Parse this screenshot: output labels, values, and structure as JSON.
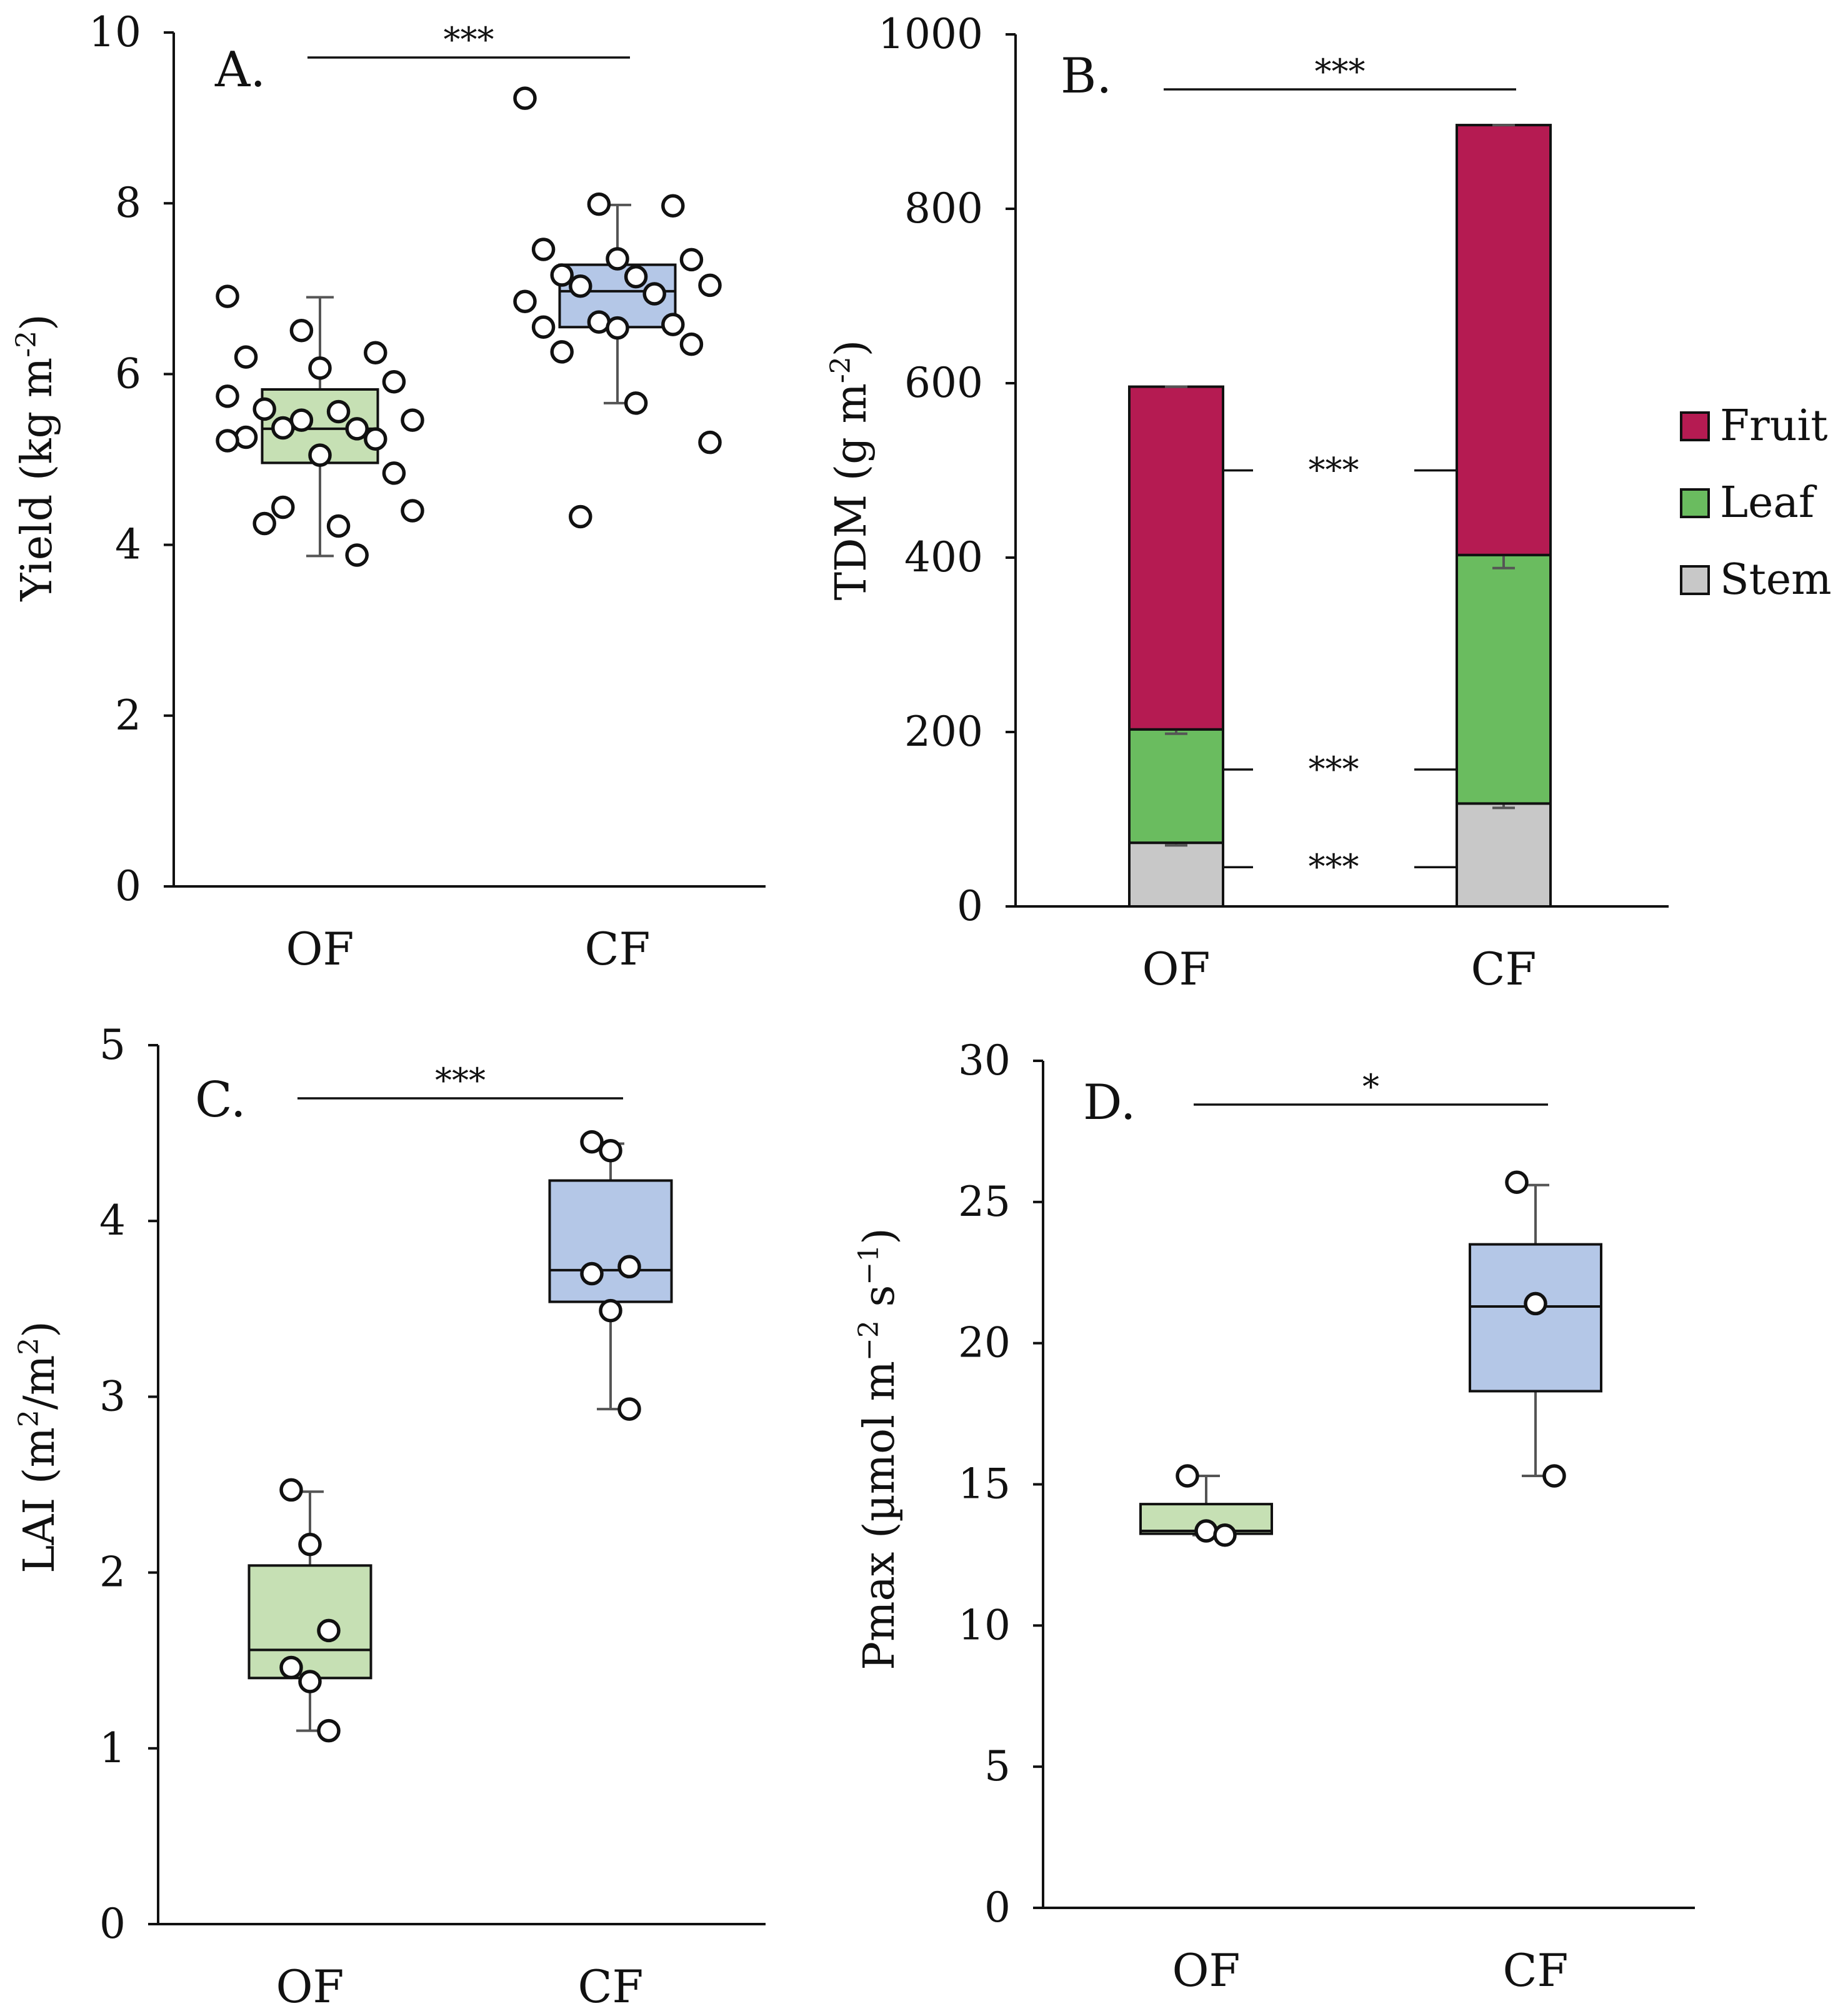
{
  "figure": {
    "panels": [
      "A",
      "B",
      "C",
      "D"
    ]
  },
  "chart_data": [
    {
      "id": "A",
      "type": "box",
      "panel_label": "A.",
      "ylabel": "Yield (kg m-2)",
      "ylabel_parts": {
        "text": "Yield (kg m",
        "sup": "-2",
        "close": ")"
      },
      "ylim": [
        0,
        10
      ],
      "yticks": [
        "0",
        "2",
        "4",
        "6",
        "8",
        "10"
      ],
      "categories": [
        "OF",
        "CF"
      ],
      "significance": "***",
      "colors": {
        "OF": "#c6e0b4",
        "CF": "#b4c7e7"
      },
      "boxes": [
        {
          "name": "OF",
          "min": 3.87,
          "q1": 4.96,
          "median": 5.36,
          "q3": 5.82,
          "max": 6.9
        },
        {
          "name": "CF",
          "min": 5.66,
          "q1": 6.55,
          "median": 6.97,
          "q3": 7.28,
          "max": 7.98
        }
      ],
      "points": [
        [
          5.74,
          5.46,
          5.24,
          5.26,
          5.05,
          4.84,
          4.25,
          4.22,
          4.4,
          4.44,
          3.88,
          6.91,
          6.51,
          6.25,
          6.2,
          6.07,
          5.91,
          5.59,
          5.56,
          5.46,
          5.37,
          5.36,
          5.22
        ],
        [
          9.23,
          7.99,
          7.97,
          7.46,
          7.35,
          7.34,
          7.16,
          7.14,
          7.04,
          7.03,
          6.94,
          6.85,
          6.61,
          6.58,
          6.55,
          6.54,
          6.35,
          6.26,
          5.66,
          5.2,
          4.33
        ]
      ]
    },
    {
      "id": "B",
      "type": "stacked_bar",
      "panel_label": "B.",
      "ylabel": "TDM (g m-2)",
      "ylabel_parts": {
        "text": "TDM (g m",
        "sup": "-2",
        "close": ")"
      },
      "ylim": [
        0,
        1000
      ],
      "yticks": [
        "0",
        "200",
        "400",
        "600",
        "800",
        "1000"
      ],
      "categories": [
        "OF",
        "CF"
      ],
      "significance": "***",
      "series": [
        {
          "name": "Stem",
          "color": "#c8c8c8",
          "values": [
            73,
            118
          ],
          "errors": [
            3,
            5
          ],
          "significance": "***"
        },
        {
          "name": "Leaf",
          "color": "#6abc5f",
          "values": [
            130,
            285
          ],
          "errors": [
            5,
            15
          ],
          "significance": "***"
        },
        {
          "name": "Fruit",
          "color": "#b51b52",
          "values": [
            393,
            493
          ],
          "errors": [
            0,
            0
          ],
          "significance": "***"
        }
      ],
      "legend": [
        "Fruit",
        "Leaf",
        "Stem"
      ],
      "legend_position": "right"
    },
    {
      "id": "C",
      "type": "box",
      "panel_label": "C.",
      "ylabel": "LAI (m2/m2)",
      "ylabel_parts": {
        "text": "LAI (m",
        "sup": "2",
        "mid": "/m",
        "sup2": "2",
        "close": ")"
      },
      "ylim": [
        0,
        5
      ],
      "yticks": [
        "0",
        "1",
        "2",
        "3",
        "4",
        "5"
      ],
      "categories": [
        "OF",
        "CF"
      ],
      "significance": "***",
      "colors": {
        "OF": "#c6e0b4",
        "CF": "#b4c7e7"
      },
      "boxes": [
        {
          "name": "OF",
          "min": 1.1,
          "q1": 1.4,
          "median": 1.56,
          "q3": 2.04,
          "max": 2.46
        },
        {
          "name": "CF",
          "min": 2.93,
          "q1": 3.54,
          "median": 3.72,
          "q3": 4.23,
          "max": 4.44
        }
      ],
      "points": [
        [
          2.47,
          2.16,
          1.67,
          1.46,
          1.38,
          1.1
        ],
        [
          4.45,
          4.4,
          3.74,
          3.7,
          3.49,
          2.93
        ]
      ]
    },
    {
      "id": "D",
      "type": "box",
      "panel_label": "D.",
      "ylabel": "Pmax (µmol m−2 s−1)",
      "ylabel_parts": {
        "text": "Pmax (µmol m",
        "sup": "−2",
        "mid": " s",
        "sup2": "−1",
        "close": ")"
      },
      "ylim": [
        0,
        30
      ],
      "yticks": [
        "0",
        "5",
        "10",
        "15",
        "20",
        "25",
        "30"
      ],
      "categories": [
        "OF",
        "CF"
      ],
      "significance": "*",
      "colors": {
        "OF": "#c6e0b4",
        "CF": "#b4c7e7"
      },
      "boxes": [
        {
          "name": "OF",
          "min": 13.2,
          "q1": 13.25,
          "median": 13.35,
          "q3": 14.3,
          "max": 15.3
        },
        {
          "name": "CF",
          "min": 15.3,
          "q1": 18.3,
          "median": 21.3,
          "q3": 23.5,
          "max": 25.6
        }
      ],
      "points": [
        [
          15.3,
          13.35,
          13.2
        ],
        [
          25.7,
          21.4,
          15.3
        ]
      ]
    }
  ]
}
